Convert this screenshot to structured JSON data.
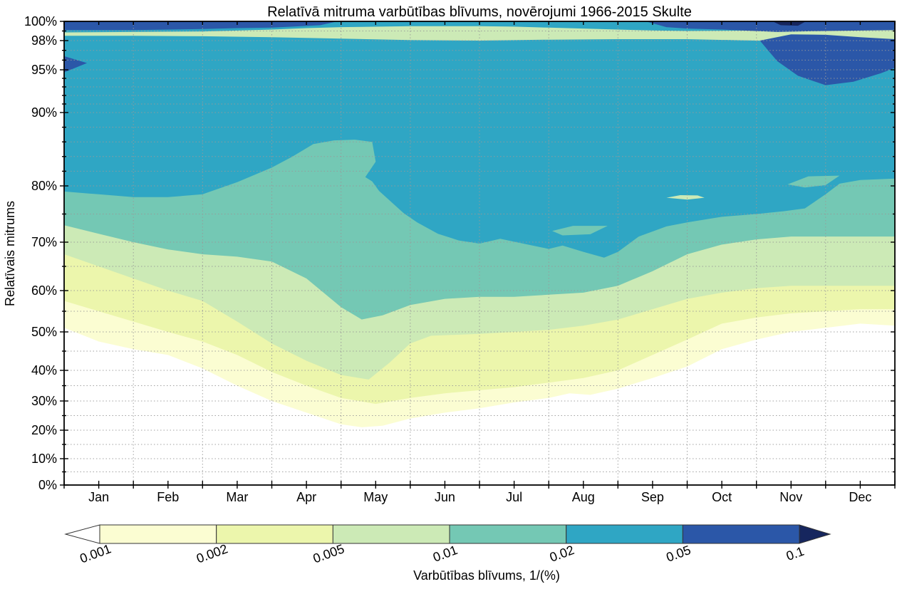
{
  "figure": {
    "title": "Relatīvā mitruma varbūtības blīvums, novērojumi 1966-2015 Skulte",
    "ylabel": "Relatīvais mitrums",
    "colorbar_label": "Varbūtības blīvums, 1/(%)"
  },
  "chart_data": {
    "type": "filled_contour",
    "title": "Relatīvā mitruma varbūtības blīvums, novērojumi 1966-2015 Skulte",
    "xlabel": "Varbūtības blīvums, 1/(%)",
    "ylabel": "Relatīvais mitrums",
    "categories": [
      "Jan",
      "Feb",
      "Mar",
      "Apr",
      "May",
      "Jun",
      "Jul",
      "Aug",
      "Sep",
      "Oct",
      "Nov",
      "Dec"
    ],
    "levels": [
      0.001,
      0.002,
      0.005,
      0.01,
      0.02,
      0.05,
      0.1
    ],
    "colors": {
      "c001": "#fbfdd2",
      "c002": "#ecf6ac",
      "c005": "#cceab6",
      "c01": "#74c8b4",
      "c02": "#2fa6c4",
      "c05": "#2b57a8",
      "c10": "#16265e",
      "under": "#ffffff",
      "grid": "#999999",
      "frame": "#000000"
    },
    "y_axis": {
      "unit": "%",
      "ticks": [
        0,
        10,
        20,
        30,
        40,
        50,
        60,
        70,
        80,
        90,
        95,
        98,
        100
      ],
      "tick_labels": [
        "0%",
        "10%",
        "20%",
        "30%",
        "40%",
        "50%",
        "60%",
        "70%",
        "80%",
        "90%",
        "95%",
        "98%",
        "100%"
      ],
      "scale_anchors": [
        [
          0,
          1.0
        ],
        [
          10,
          0.9432
        ],
        [
          20,
          0.8817
        ],
        [
          30,
          0.8187
        ],
        [
          40,
          0.7527
        ],
        [
          50,
          0.6697
        ],
        [
          60,
          0.5806
        ],
        [
          70,
          0.4762
        ],
        [
          80,
          0.3548
        ],
        [
          90,
          0.1966
        ],
        [
          95,
          0.1045
        ],
        [
          98,
          0.0415
        ],
        [
          100,
          0.0
        ]
      ],
      "minor_gridlines": [
        5,
        15,
        25,
        35,
        45,
        55,
        65,
        75,
        82,
        84,
        86,
        88,
        91,
        92,
        93,
        94,
        96,
        97,
        99
      ],
      "grid": true
    },
    "x_axis": {
      "range_months": [
        0,
        12
      ],
      "gridlines_at_month_boundaries": true
    },
    "band_lower_boundaries": [
      {
        "level": 0.001,
        "color_key": "c001",
        "points": [
          [
            0,
            51
          ],
          [
            0.5,
            47.5
          ],
          [
            1,
            45.5
          ],
          [
            1.5,
            44
          ],
          [
            2,
            40.5
          ],
          [
            2.5,
            35
          ],
          [
            3,
            30
          ],
          [
            3.5,
            26
          ],
          [
            4,
            22
          ],
          [
            4.3,
            21
          ],
          [
            4.6,
            21.5
          ],
          [
            5,
            24
          ],
          [
            5.5,
            26
          ],
          [
            6,
            27.5
          ],
          [
            6.5,
            29.5
          ],
          [
            7,
            31
          ],
          [
            7.3,
            32.5
          ],
          [
            7.6,
            32
          ],
          [
            8,
            34
          ],
          [
            8.5,
            37.5
          ],
          [
            9,
            41
          ],
          [
            9.5,
            45.5
          ],
          [
            10,
            48
          ],
          [
            10.5,
            50
          ],
          [
            11,
            51
          ],
          [
            11.5,
            52
          ],
          [
            12,
            51.5
          ]
        ]
      },
      {
        "level": 0.002,
        "color_key": "c002",
        "points": [
          [
            0,
            57.5
          ],
          [
            0.5,
            55
          ],
          [
            1,
            52.5
          ],
          [
            1.5,
            50
          ],
          [
            2,
            47.5
          ],
          [
            2.5,
            44
          ],
          [
            3,
            39.5
          ],
          [
            3.5,
            35
          ],
          [
            4,
            31
          ],
          [
            4.5,
            29
          ],
          [
            5,
            31
          ],
          [
            5.5,
            32.5
          ],
          [
            6,
            33.5
          ],
          [
            6.5,
            34.5
          ],
          [
            7,
            36
          ],
          [
            7.5,
            37.5
          ],
          [
            8,
            40
          ],
          [
            8.5,
            44
          ],
          [
            9,
            48
          ],
          [
            9.5,
            52
          ],
          [
            10,
            53.5
          ],
          [
            10.5,
            54.5
          ],
          [
            11,
            55
          ],
          [
            11.5,
            55.5
          ],
          [
            12,
            55.5
          ]
        ]
      },
      {
        "level": 0.005,
        "color_key": "c005",
        "points": [
          [
            0,
            67.5
          ],
          [
            0.5,
            65
          ],
          [
            1,
            62.5
          ],
          [
            1.5,
            60
          ],
          [
            2,
            57.5
          ],
          [
            2.5,
            52.5
          ],
          [
            3,
            47
          ],
          [
            3.5,
            42.5
          ],
          [
            4,
            38.5
          ],
          [
            4.4,
            37
          ],
          [
            4.7,
            42
          ],
          [
            5,
            47
          ],
          [
            5.3,
            49
          ],
          [
            6,
            49.5
          ],
          [
            6.5,
            50
          ],
          [
            7,
            50.5
          ],
          [
            7.5,
            51.5
          ],
          [
            8,
            53
          ],
          [
            8.5,
            55.5
          ],
          [
            9,
            58
          ],
          [
            9.5,
            59.5
          ],
          [
            10,
            60.5
          ],
          [
            10.5,
            61
          ],
          [
            11,
            61
          ],
          [
            11.5,
            61
          ],
          [
            12,
            61
          ]
        ]
      },
      {
        "level": 0.01,
        "color_key": "c01",
        "points": [
          [
            0,
            73
          ],
          [
            0.5,
            71.5
          ],
          [
            1,
            70
          ],
          [
            1.5,
            68.5
          ],
          [
            2,
            67.5
          ],
          [
            2.5,
            67
          ],
          [
            3,
            66
          ],
          [
            3.5,
            62.5
          ],
          [
            4,
            56
          ],
          [
            4.3,
            53
          ],
          [
            4.6,
            54
          ],
          [
            5,
            56.5
          ],
          [
            5.5,
            58
          ],
          [
            6,
            58.5
          ],
          [
            6.5,
            58.5
          ],
          [
            7,
            59
          ],
          [
            7.5,
            59.5
          ],
          [
            8,
            61
          ],
          [
            8.5,
            64
          ],
          [
            9,
            67.5
          ],
          [
            9.5,
            69.5
          ],
          [
            10,
            70.5
          ],
          [
            10.5,
            71
          ],
          [
            11,
            71
          ],
          [
            11.5,
            71
          ],
          [
            12,
            71
          ]
        ]
      },
      {
        "level": 0.02,
        "color_key": "c02",
        "points": [
          [
            0,
            79
          ],
          [
            0.5,
            78.5
          ],
          [
            1,
            78
          ],
          [
            1.5,
            78
          ],
          [
            2,
            78.5
          ],
          [
            2.5,
            80.5
          ],
          [
            3,
            82.5
          ],
          [
            3.3,
            84
          ],
          [
            3.6,
            85.7
          ],
          [
            3.9,
            86.2
          ],
          [
            4.2,
            86.3
          ],
          [
            4.45,
            86
          ],
          [
            4.5,
            83.3
          ],
          [
            4.35,
            81.2
          ],
          [
            4.45,
            80.6
          ],
          [
            4.55,
            79.1
          ],
          [
            4.9,
            75.2
          ],
          [
            5.1,
            73.5
          ],
          [
            5.4,
            71.5
          ],
          [
            5.7,
            70.3
          ],
          [
            6,
            69.7
          ],
          [
            6.3,
            70.6
          ],
          [
            6.6,
            69.8
          ],
          [
            7,
            68.6
          ],
          [
            7.2,
            69.3
          ],
          [
            7.5,
            68
          ],
          [
            7.8,
            66.8
          ],
          [
            8,
            68
          ],
          [
            8.3,
            71
          ],
          [
            8.7,
            72.8
          ],
          [
            9,
            73.5
          ],
          [
            9.5,
            74.5
          ],
          [
            10,
            75
          ],
          [
            10.4,
            75.5
          ],
          [
            10.7,
            76
          ],
          [
            11,
            78.5
          ],
          [
            11.2,
            80.3
          ],
          [
            11.5,
            80.8
          ],
          [
            12,
            81
          ]
        ]
      }
    ],
    "overlay_polygons": [
      {
        "name": "valley-stripe-low-density",
        "color_key": "c005",
        "points": [
          [
            0,
            98.85
          ],
          [
            1,
            98.9
          ],
          [
            2,
            98.95
          ],
          [
            3,
            99.15
          ],
          [
            3.5,
            99.3
          ],
          [
            4,
            99.4
          ],
          [
            5,
            99.5
          ],
          [
            6,
            99.5
          ],
          [
            6.5,
            99.45
          ],
          [
            7,
            99.35
          ],
          [
            7.5,
            99.25
          ],
          [
            8,
            99.15
          ],
          [
            8.5,
            99.05
          ],
          [
            9,
            99.0
          ],
          [
            10,
            99.05
          ],
          [
            11,
            99.05
          ],
          [
            11.5,
            99.1
          ],
          [
            12,
            99.2
          ],
          [
            12,
            98.1
          ],
          [
            11.5,
            98.0
          ],
          [
            11,
            97.9
          ],
          [
            10.5,
            97.9
          ],
          [
            10,
            98.0
          ],
          [
            9,
            98.15
          ],
          [
            8,
            98.15
          ],
          [
            7,
            98.1
          ],
          [
            6,
            98.0
          ],
          [
            5,
            98.05
          ],
          [
            4,
            98.2
          ],
          [
            3,
            98.35
          ],
          [
            2,
            98.45
          ],
          [
            1,
            98.5
          ],
          [
            0,
            98.5
          ]
        ]
      },
      {
        "name": "nov-tongue-medium",
        "color_key": "c01",
        "points": [
          [
            10.45,
            80.2
          ],
          [
            10.75,
            81.3
          ],
          [
            11.2,
            81.4
          ],
          [
            11.0,
            80.1
          ],
          [
            10.7,
            79.7
          ]
        ]
      },
      {
        "name": "sep-lens-light",
        "color_key": "c005",
        "points": [
          [
            8.7,
            77.9
          ],
          [
            8.9,
            78.35
          ],
          [
            9.15,
            78.3
          ],
          [
            9.25,
            77.9
          ],
          [
            9.0,
            77.55
          ]
        ]
      },
      {
        "name": "jul-lens-medium",
        "color_key": "c01",
        "points": [
          [
            7.05,
            72.0
          ],
          [
            7.35,
            72.9
          ],
          [
            7.85,
            72.9
          ],
          [
            7.6,
            71.4
          ],
          [
            7.2,
            71.2
          ]
        ]
      },
      {
        "name": "navy-top-stripe-left",
        "color_key": "c05",
        "points": [
          [
            0,
            100
          ],
          [
            3.95,
            100
          ],
          [
            3.7,
            99.6
          ],
          [
            3.3,
            99.45
          ],
          [
            3,
            99.35
          ],
          [
            2.5,
            99.3
          ],
          [
            2,
            99.2
          ],
          [
            1,
            99.1
          ],
          [
            0,
            99.1
          ]
        ]
      },
      {
        "name": "navy-top-stripe-right",
        "color_key": "c05",
        "points": [
          [
            8.4,
            100
          ],
          [
            12,
            100
          ],
          [
            12,
            99.1
          ],
          [
            11,
            99.0
          ],
          [
            10.3,
            98.9
          ],
          [
            9.5,
            99.15
          ],
          [
            9,
            99.25
          ],
          [
            8.7,
            99.4
          ]
        ]
      },
      {
        "name": "navy-blob-jan-left",
        "color_key": "c05",
        "points": [
          [
            0,
            96.4
          ],
          [
            0.33,
            95.7
          ],
          [
            0,
            94.7
          ]
        ]
      },
      {
        "name": "navy-blob-nov-dec",
        "color_key": "c05",
        "points": [
          [
            10.05,
            98.0
          ],
          [
            10.5,
            98.65
          ],
          [
            11,
            98.6
          ],
          [
            11.5,
            98.35
          ],
          [
            12,
            98.15
          ],
          [
            12,
            95.2
          ],
          [
            11.8,
            94.6
          ],
          [
            11.4,
            93.6
          ],
          [
            11,
            93.2
          ],
          [
            10.6,
            94.3
          ],
          [
            10.3,
            95.9
          ]
        ]
      },
      {
        "name": "darkest-lens-nov-top",
        "color_key": "c10",
        "points": [
          [
            10.25,
            99.95
          ],
          [
            10.7,
            99.95
          ],
          [
            10.6,
            99.55
          ],
          [
            10.35,
            99.6
          ]
        ]
      }
    ],
    "colorbar": {
      "tick_labels": [
        "0.001",
        "0.002",
        "0.005",
        "0.01",
        "0.02",
        "0.05",
        "0.1"
      ],
      "segment_color_keys": [
        "c001",
        "c002",
        "c005",
        "c01",
        "c02",
        "c05"
      ],
      "left_arrow_color": "#ffffff",
      "right_arrow_color_key": "c10",
      "label": "Varbūtības blīvums, 1/(%)",
      "orientation": "horizontal"
    }
  }
}
